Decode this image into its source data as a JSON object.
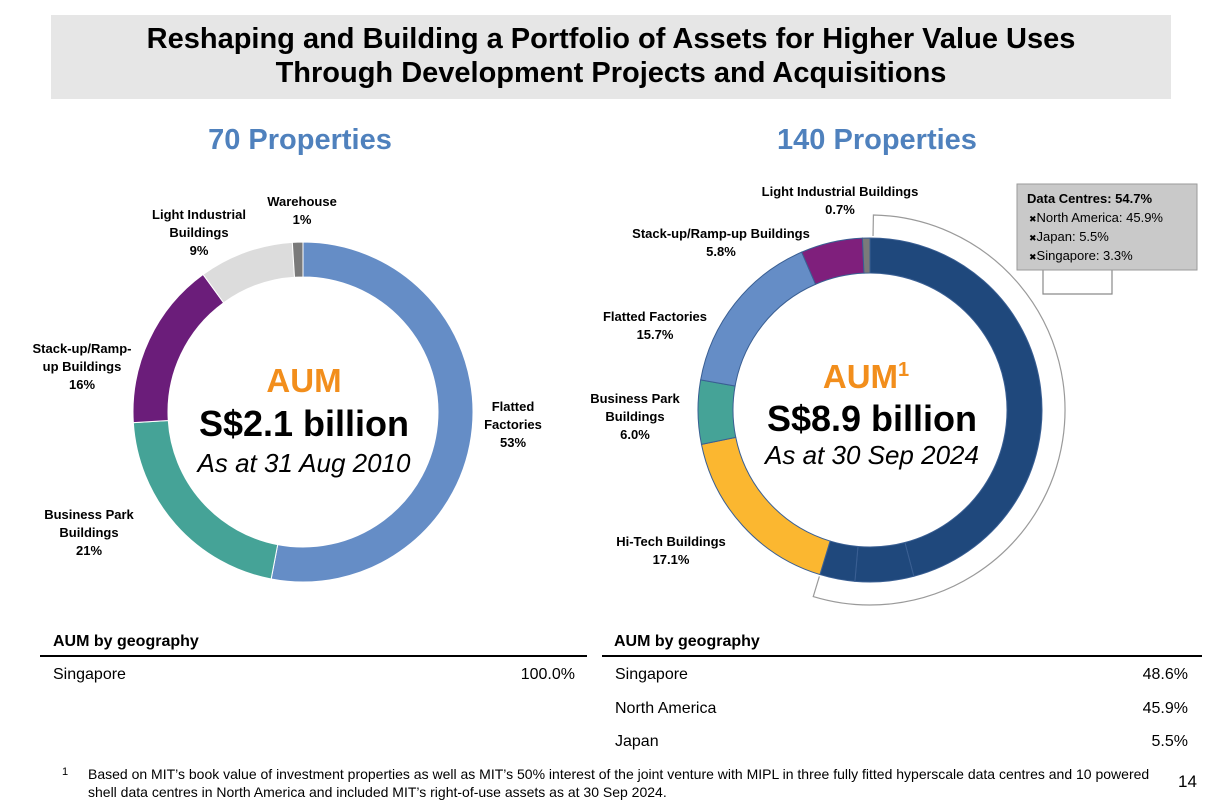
{
  "title": {
    "line1": "Reshaping and Building a Portfolio of Assets for Higher Value Uses",
    "line2": "Through Development Projects and Acquisitions"
  },
  "chart_data": [
    {
      "type": "pie",
      "heading": "70 Properties",
      "center": {
        "label": "AUM",
        "value": "S$2.1 billion",
        "date": "As at 31 Aug 2010"
      },
      "slices": [
        {
          "label": "Flatted Factories",
          "pct_text": "53%",
          "value": 53,
          "color": "#658dc6"
        },
        {
          "label": "Business Park Buildings",
          "pct_text": "21%",
          "value": 21,
          "color": "#45a397"
        },
        {
          "label": "Stack-up/Ramp-up Buildings",
          "pct_text": "16%",
          "value": 16,
          "color": "#6b1d7a"
        },
        {
          "label": "Light Industrial Buildings",
          "pct_text": "9%",
          "value": 9,
          "color": "#dcdcdc"
        },
        {
          "label": "Warehouse",
          "pct_text": "1%",
          "value": 1,
          "color": "#7a7a7a"
        }
      ]
    },
    {
      "type": "pie",
      "heading": "140 Properties",
      "center": {
        "label": "AUM",
        "superscript": "1",
        "value": "S$8.9 billion",
        "date": "As at 30 Sep 2024"
      },
      "slices": [
        {
          "label": "North America",
          "value": 45.9,
          "color": "#1f487c",
          "group": "Data Centres"
        },
        {
          "label": "Japan",
          "value": 5.5,
          "color": "#1f487c",
          "group": "Data Centres"
        },
        {
          "label": "Singapore",
          "value": 3.3,
          "color": "#1f487c",
          "group": "Data Centres"
        },
        {
          "label": "Hi-Tech Buildings",
          "pct_text": "17.1%",
          "value": 17.1,
          "color": "#fbb730"
        },
        {
          "label": "Business Park Buildings",
          "pct_text": "6.0%",
          "value": 6.0,
          "color": "#45a397"
        },
        {
          "label": "Flatted Factories",
          "pct_text": "15.7%",
          "value": 15.7,
          "color": "#658dc6"
        },
        {
          "label": "Stack-up/Ramp-up Buildings",
          "pct_text": "5.8%",
          "value": 5.8,
          "color": "#7f1f7c"
        },
        {
          "label": "Light Industrial Buildings",
          "pct_text": "0.7%",
          "value": 0.7,
          "color": "#7a7a7a"
        }
      ],
      "callout": {
        "title": "Data Centres: 54.7%",
        "items": [
          "North America: 45.9%",
          "Japan: 5.5%",
          "Singapore: 3.3%"
        ]
      }
    }
  ],
  "geography_left": {
    "header": "AUM by geography",
    "rows": [
      {
        "name": "Singapore",
        "value": "100.0%"
      }
    ]
  },
  "geography_right": {
    "header": "AUM by geography",
    "rows": [
      {
        "name": "Singapore",
        "value": "48.6%"
      },
      {
        "name": "North America",
        "value": "45.9%"
      },
      {
        "name": "Japan",
        "value": "5.5%"
      }
    ]
  },
  "footnote": {
    "mark": "1",
    "text": "Based on MIT’s book value of investment properties as well as MIT’s 50% interest of the joint venture with MIPL in three fully fitted hyperscale data centres and 10 powered shell data centres in North America and included MIT’s right-of-use assets as at 30 Sep 2024."
  },
  "page_number": "14",
  "colors": {
    "accent_blue": "#4f81bd",
    "aum_orange": "#f28e1c",
    "title_band": "#e6e6e6"
  }
}
